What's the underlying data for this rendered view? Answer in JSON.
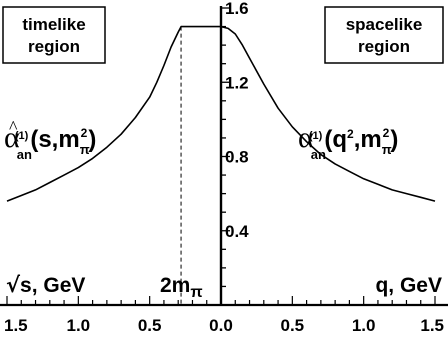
{
  "chart_data": {
    "type": "line",
    "boxes": {
      "left": [
        "timelike",
        "region"
      ],
      "right": [
        "spacelike",
        "region"
      ]
    },
    "x_ticks": [
      {
        "value": -1.5,
        "label": "1.5"
      },
      {
        "value": -1.0,
        "label": "1.0"
      },
      {
        "value": -0.5,
        "label": "0.5"
      },
      {
        "value": 0.0,
        "label": "0.0"
      },
      {
        "value": 0.5,
        "label": "0.5"
      },
      {
        "value": 1.0,
        "label": "1.0"
      },
      {
        "value": 1.5,
        "label": "1.5"
      }
    ],
    "y_ticks": [
      {
        "value": 0.4,
        "label": "0.4"
      },
      {
        "value": 0.8,
        "label": "0.8"
      },
      {
        "value": 1.2,
        "label": "1.2"
      },
      {
        "value": 1.6,
        "label": "1.6"
      }
    ],
    "xlim": [
      -1.5,
      1.5
    ],
    "ylim": [
      0.0,
      1.6
    ],
    "xlabel_left": {
      "main": "s, GeV",
      "sqrt": "√"
    },
    "xlabel_right": "q, GeV",
    "threshold_label": {
      "main": "2m",
      "sub": "π"
    },
    "threshold_x": -0.28,
    "left_curve_label": {
      "alpha": "α",
      "hat": "^",
      "sub": "an",
      "sup": "(1)",
      "args": "(s,m",
      "args_sub": "π",
      "args_sup": "2",
      "close": ")"
    },
    "right_curve_label": {
      "alpha": "α",
      "sub": "an",
      "sup": "(1)",
      "args": "(q",
      "args_sup": "2",
      "mid": ",m",
      "args_sub": "π",
      "args_sup2": "2",
      "close": ")"
    },
    "series": [
      {
        "region": "timelike",
        "x": [
          -1.5,
          -1.4,
          -1.3,
          -1.2,
          -1.1,
          -1.0,
          -0.9,
          -0.8,
          -0.7,
          -0.6,
          -0.5,
          -0.45,
          -0.4,
          -0.35,
          -0.3,
          -0.28,
          -0.2,
          -0.1,
          0.0
        ],
        "y": [
          0.56,
          0.59,
          0.62,
          0.66,
          0.7,
          0.74,
          0.79,
          0.85,
          0.92,
          1.01,
          1.12,
          1.2,
          1.29,
          1.39,
          1.47,
          1.5,
          1.5,
          1.5,
          1.5
        ]
      },
      {
        "region": "spacelike",
        "x": [
          0.0,
          0.05,
          0.1,
          0.15,
          0.2,
          0.3,
          0.4,
          0.5,
          0.6,
          0.7,
          0.8,
          0.9,
          1.0,
          1.1,
          1.2,
          1.3,
          1.4,
          1.5
        ],
        "y": [
          1.5,
          1.49,
          1.46,
          1.4,
          1.33,
          1.19,
          1.06,
          0.96,
          0.88,
          0.81,
          0.76,
          0.72,
          0.68,
          0.65,
          0.62,
          0.6,
          0.58,
          0.56
        ]
      }
    ]
  }
}
